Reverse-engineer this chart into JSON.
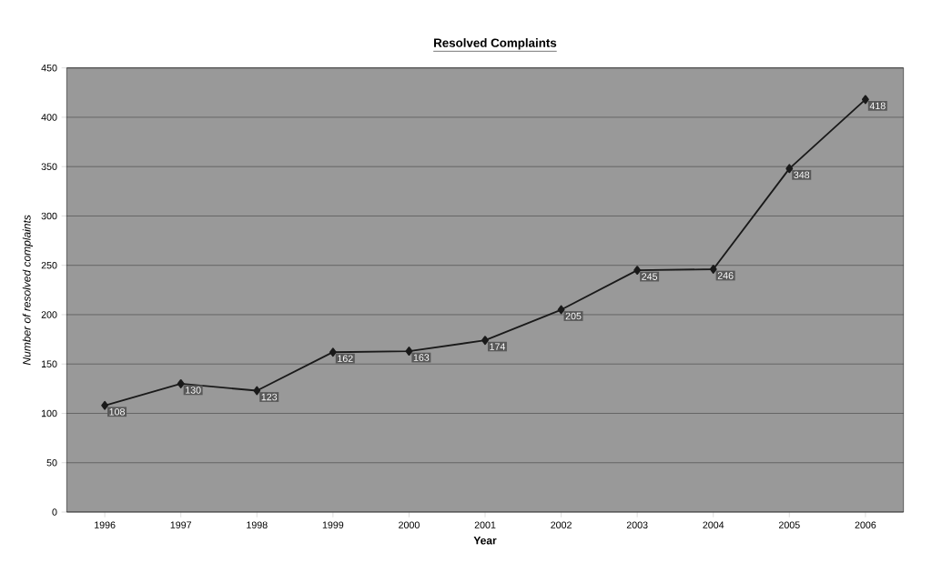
{
  "chart_data": {
    "type": "line",
    "title": "Resolved Complaints",
    "xlabel": "Year",
    "ylabel": "Number of resolved complaints",
    "categories": [
      "1996",
      "1997",
      "1998",
      "1999",
      "2000",
      "2001",
      "2002",
      "2003",
      "2004",
      "2005",
      "2006"
    ],
    "series": [
      {
        "color": "#1a1a1a",
        "values": [
          108,
          130,
          123,
          162,
          163,
          174,
          205,
          245,
          246,
          348,
          418
        ]
      }
    ],
    "ylim": [
      0,
      450
    ],
    "yticks": [
      0,
      50,
      100,
      150,
      200,
      250,
      300,
      350,
      400,
      450
    ],
    "grid": "y",
    "marker": "diamond",
    "line_style": "solid",
    "data_labels": true,
    "legend": false
  }
}
